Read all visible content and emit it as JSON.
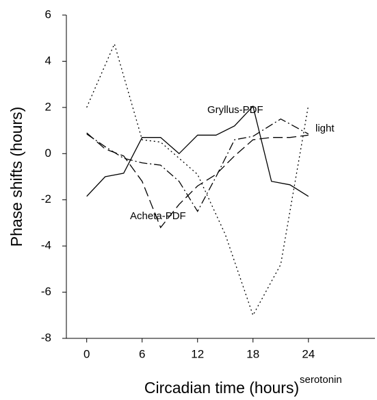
{
  "chart_data": {
    "type": "line",
    "x_label": "Circadian time (hours)",
    "y_label": "Phase shifts (hours)",
    "xlim": [
      -2.2,
      31.2
    ],
    "ylim": [
      -8,
      6
    ],
    "xticks": [
      0,
      6,
      12,
      18,
      24
    ],
    "yticks": [
      -8,
      -6,
      -4,
      -2,
      0,
      2,
      4,
      6
    ],
    "grid": false,
    "color": "#000000",
    "series": [
      {
        "name": "Gryllus-PDF",
        "style": "solid",
        "x": [
          0,
          2,
          4,
          6,
          8,
          10,
          12,
          14,
          16,
          18,
          20,
          22,
          24
        ],
        "values": [
          -1.85,
          -1.0,
          -0.85,
          0.7,
          0.7,
          0.0,
          0.8,
          0.8,
          1.2,
          2.05,
          -1.2,
          -1.35,
          -1.85
        ]
      },
      {
        "name": "light",
        "style": "dashdot",
        "x": [
          0,
          2,
          4,
          6,
          8,
          10,
          12,
          14,
          16,
          18,
          21,
          24
        ],
        "values": [
          0.85,
          0.3,
          -0.2,
          -0.4,
          -0.5,
          -1.2,
          -2.5,
          -1.0,
          0.6,
          0.75,
          1.5,
          0.85
        ]
      },
      {
        "name": "Acheta-PDF",
        "style": "dashed",
        "x": [
          0,
          2,
          4,
          6,
          8,
          10,
          12,
          14,
          16,
          18,
          20,
          22,
          24
        ],
        "values": [
          0.9,
          0.2,
          -0.1,
          -1.2,
          -3.2,
          -2.2,
          -1.4,
          -0.9,
          -0.1,
          0.6,
          0.7,
          0.7,
          0.8
        ]
      },
      {
        "name": "serotonin",
        "style": "dotted",
        "x": [
          0,
          3,
          6,
          8,
          12,
          15,
          18,
          21,
          24
        ],
        "values": [
          2.0,
          4.75,
          0.6,
          0.5,
          -0.9,
          -3.5,
          -7.0,
          -4.8,
          2.1
        ]
      }
    ]
  }
}
